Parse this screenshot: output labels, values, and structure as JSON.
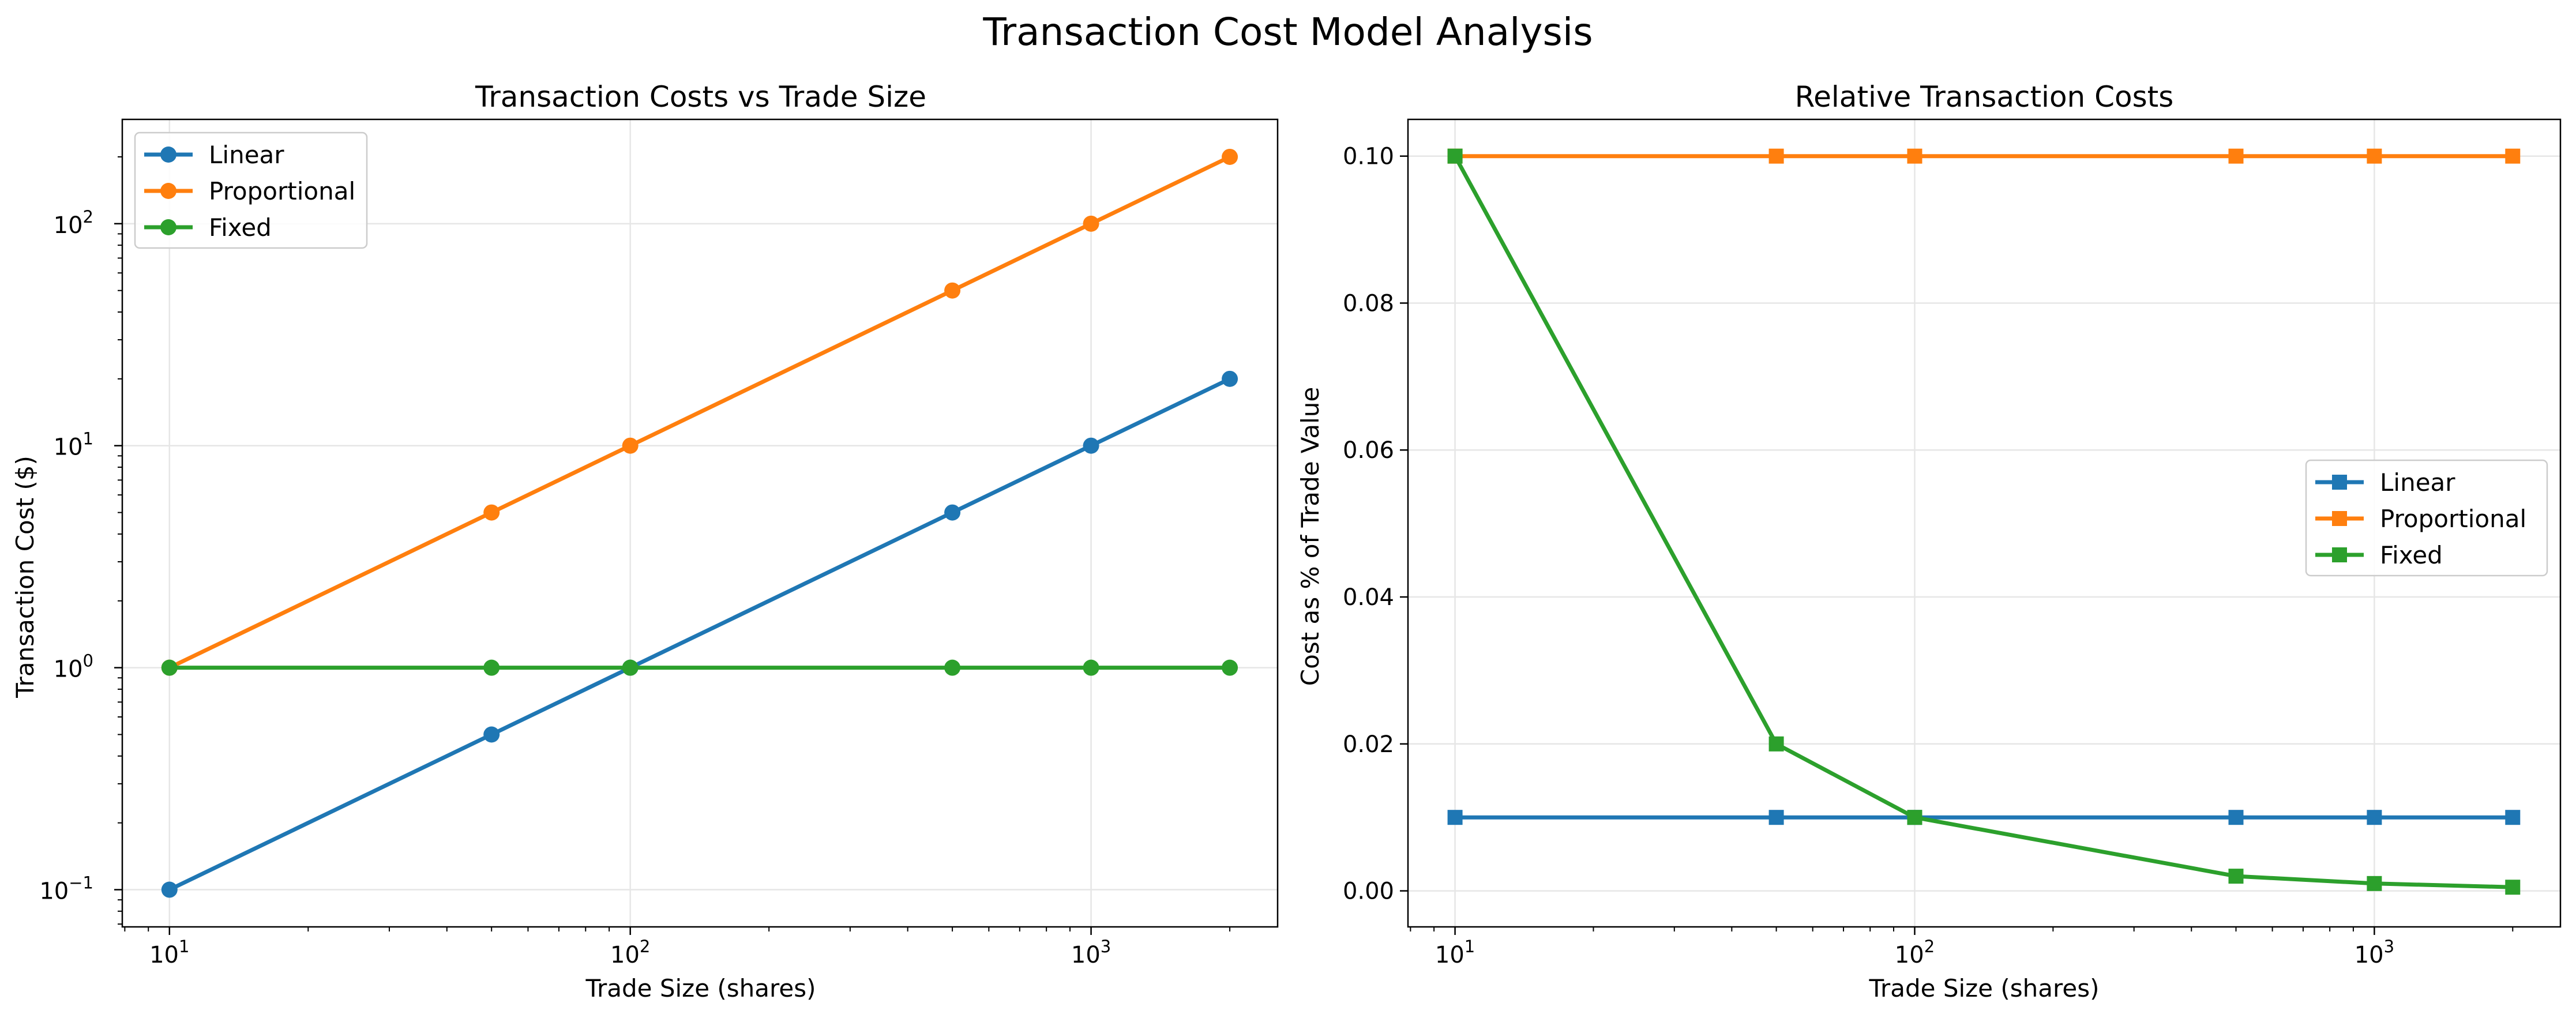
{
  "figure": {
    "title": "Transaction Cost Model Analysis"
  },
  "colors": {
    "linear": "#1f77b4",
    "proportional": "#ff7f0e",
    "fixed": "#2ca02c"
  },
  "chart_data": [
    {
      "type": "line",
      "title": "Transaction Costs vs Trade Size",
      "xlabel": "Trade Size (shares)",
      "ylabel": "Transaction Cost ($)",
      "xscale": "log",
      "yscale": "log",
      "xlim": [
        7.9,
        2540
      ],
      "ylim": [
        0.068,
        295
      ],
      "xticks": [
        {
          "base": "10",
          "exp": "1",
          "value": 10
        },
        {
          "base": "10",
          "exp": "2",
          "value": 100
        },
        {
          "base": "10",
          "exp": "3",
          "value": 1000
        }
      ],
      "yticks": [
        {
          "base": "10",
          "exp": "−1",
          "value": 0.1
        },
        {
          "base": "10",
          "exp": "0",
          "value": 1
        },
        {
          "base": "10",
          "exp": "1",
          "value": 10
        },
        {
          "base": "10",
          "exp": "2",
          "value": 100
        }
      ],
      "grid": true,
      "legend": "upper left",
      "marker": "circle",
      "x": [
        10,
        50,
        100,
        500,
        1000,
        2000
      ],
      "series": [
        {
          "name": "Linear",
          "color_key": "linear",
          "values": [
            0.1,
            0.5,
            1,
            5,
            10,
            20
          ]
        },
        {
          "name": "Proportional",
          "color_key": "proportional",
          "values": [
            1,
            5,
            10,
            50,
            100,
            200
          ]
        },
        {
          "name": "Fixed",
          "color_key": "fixed",
          "values": [
            1,
            1,
            1,
            1,
            1,
            1
          ]
        }
      ]
    },
    {
      "type": "line",
      "title": "Relative Transaction Costs",
      "xlabel": "Trade Size (shares)",
      "ylabel": "Cost as % of Trade Value",
      "xscale": "log",
      "yscale": "linear",
      "xlim": [
        7.9,
        2540
      ],
      "ylim": [
        -0.0049,
        0.105
      ],
      "xticks": [
        {
          "base": "10",
          "exp": "1",
          "value": 10
        },
        {
          "base": "10",
          "exp": "2",
          "value": 100
        },
        {
          "base": "10",
          "exp": "3",
          "value": 1000
        }
      ],
      "yticks": [
        {
          "label": "0.00",
          "value": 0
        },
        {
          "label": "0.02",
          "value": 0.02
        },
        {
          "label": "0.04",
          "value": 0.04
        },
        {
          "label": "0.06",
          "value": 0.06
        },
        {
          "label": "0.08",
          "value": 0.08
        },
        {
          "label": "0.10",
          "value": 0.1
        }
      ],
      "grid": true,
      "legend": "center right",
      "marker": "square",
      "x": [
        10,
        50,
        100,
        500,
        1000,
        2000
      ],
      "series": [
        {
          "name": "Linear",
          "color_key": "linear",
          "values": [
            0.01,
            0.01,
            0.01,
            0.01,
            0.01,
            0.01
          ]
        },
        {
          "name": "Proportional",
          "color_key": "proportional",
          "values": [
            0.1,
            0.1,
            0.1,
            0.1,
            0.1,
            0.1
          ]
        },
        {
          "name": "Fixed",
          "color_key": "fixed",
          "values": [
            0.1,
            0.02,
            0.01,
            0.002,
            0.001,
            0.0005
          ]
        }
      ]
    }
  ]
}
